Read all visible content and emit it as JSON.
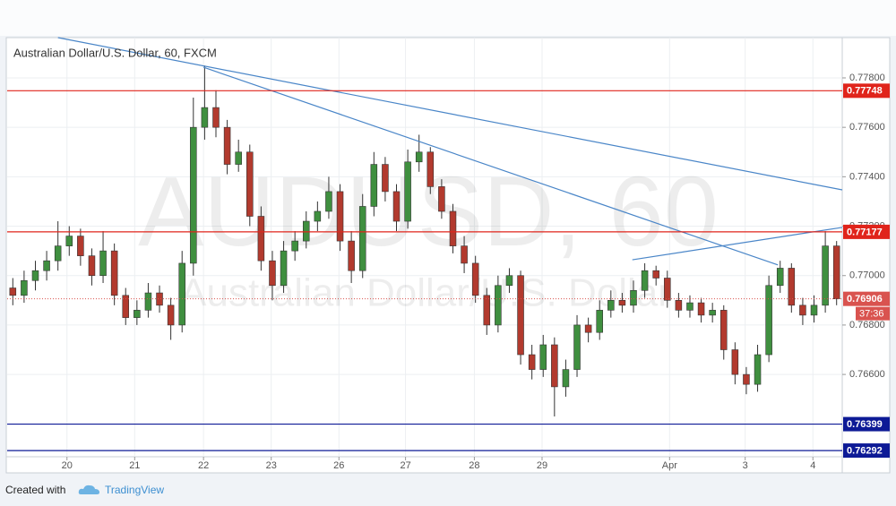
{
  "chart_data": {
    "type": "candlestick",
    "title": "Australian Dollar/U.S. Dollar, 60, FXCM",
    "watermark": "AUDUSD, 60",
    "watermark_subtitle": "Australian Dollar/U.S. Dollar",
    "xlim": [
      0,
      74
    ],
    "xticks": [
      {
        "value": 5.3,
        "label": "20"
      },
      {
        "value": 11.3,
        "label": "21"
      },
      {
        "value": 17.4,
        "label": "22"
      },
      {
        "value": 23.4,
        "label": "23"
      },
      {
        "value": 29.4,
        "label": "26"
      },
      {
        "value": 35.3,
        "label": "27"
      },
      {
        "value": 41.4,
        "label": "28"
      },
      {
        "value": 47.4,
        "label": "29"
      },
      {
        "value": 58.7,
        "label": "Apr"
      },
      {
        "value": 65.4,
        "label": "3"
      },
      {
        "value": 71.4,
        "label": "4"
      }
    ],
    "ylim": [
      0.76267,
      0.77963
    ],
    "yticks": [
      {
        "value": 0.766,
        "label": "0.76600"
      },
      {
        "value": 0.768,
        "label": "0.76800"
      },
      {
        "value": 0.77,
        "label": "0.77000"
      },
      {
        "value": 0.772,
        "label": "0.77200"
      },
      {
        "value": 0.774,
        "label": "0.77400"
      },
      {
        "value": 0.776,
        "label": "0.77600"
      },
      {
        "value": 0.778,
        "label": "0.77800"
      }
    ],
    "grid": true,
    "up_color": "#3f8f3f",
    "down_color": "#b23a2e",
    "open": [
      0.7695,
      0.7692,
      0.7698,
      0.7702,
      0.7706,
      0.7712,
      0.7716,
      0.7708,
      0.77,
      0.771,
      0.7692,
      0.7683,
      0.7686,
      0.7693,
      0.7688,
      0.768,
      0.7705,
      0.776,
      0.7768,
      0.776,
      0.7745,
      0.775,
      0.7724,
      0.7706,
      0.7696,
      0.771,
      0.7714,
      0.7722,
      0.7726,
      0.7734,
      0.7714,
      0.7702,
      0.7728,
      0.7745,
      0.7734,
      0.7722,
      0.7746,
      0.775,
      0.7736,
      0.7726,
      0.7712,
      0.7705,
      0.7692,
      0.768,
      0.7696,
      0.77,
      0.7668,
      0.7662,
      0.7672,
      0.7655,
      0.7662,
      0.768,
      0.7677,
      0.7686,
      0.769,
      0.7688,
      0.7694,
      0.7702,
      0.7699,
      0.769,
      0.7686,
      0.7689,
      0.7684,
      0.7686,
      0.767,
      0.766,
      0.7656,
      0.7668,
      0.7696,
      0.7703,
      0.7688,
      0.7684,
      0.7688,
      0.7712
    ],
    "high": [
      0.7699,
      0.7702,
      0.7706,
      0.771,
      0.7722,
      0.772,
      0.7719,
      0.7711,
      0.7718,
      0.7713,
      0.7695,
      0.769,
      0.7697,
      0.7696,
      0.7691,
      0.771,
      0.7772,
      0.7785,
      0.7775,
      0.7763,
      0.7755,
      0.7753,
      0.7728,
      0.771,
      0.7714,
      0.7718,
      0.7726,
      0.773,
      0.774,
      0.7737,
      0.7718,
      0.7733,
      0.775,
      0.7748,
      0.7737,
      0.7751,
      0.7757,
      0.7752,
      0.7739,
      0.7729,
      0.7716,
      0.7708,
      0.7695,
      0.77,
      0.7703,
      0.7702,
      0.7672,
      0.7676,
      0.7675,
      0.7666,
      0.7684,
      0.7683,
      0.769,
      0.7694,
      0.7693,
      0.7698,
      0.7705,
      0.7704,
      0.7702,
      0.7693,
      0.7692,
      0.7691,
      0.7689,
      0.7688,
      0.7673,
      0.7663,
      0.7672,
      0.77,
      0.7706,
      0.7705,
      0.7691,
      0.7692,
      0.7718,
      0.7714
    ],
    "low": [
      0.7688,
      0.7689,
      0.7694,
      0.7698,
      0.7702,
      0.7708,
      0.7704,
      0.7696,
      0.7697,
      0.7688,
      0.768,
      0.768,
      0.7683,
      0.7685,
      0.7674,
      0.7677,
      0.77,
      0.7755,
      0.7756,
      0.7741,
      0.7742,
      0.772,
      0.7702,
      0.769,
      0.7693,
      0.7706,
      0.7711,
      0.7718,
      0.7723,
      0.771,
      0.7697,
      0.7699,
      0.7724,
      0.773,
      0.7718,
      0.7719,
      0.7742,
      0.7733,
      0.7723,
      0.7709,
      0.7701,
      0.7689,
      0.7676,
      0.7677,
      0.7693,
      0.7664,
      0.7658,
      0.7659,
      0.7643,
      0.7651,
      0.7659,
      0.7673,
      0.7674,
      0.7683,
      0.7685,
      0.7685,
      0.7691,
      0.7696,
      0.7687,
      0.7683,
      0.7683,
      0.7681,
      0.7681,
      0.7666,
      0.7656,
      0.7652,
      0.7653,
      0.7665,
      0.7693,
      0.7685,
      0.768,
      0.7681,
      0.7685,
      0.7688
    ],
    "close": [
      0.7692,
      0.7698,
      0.7702,
      0.7706,
      0.7712,
      0.7716,
      0.7708,
      0.77,
      0.771,
      0.7692,
      0.7683,
      0.7686,
      0.7693,
      0.7688,
      0.768,
      0.7705,
      0.776,
      0.7768,
      0.776,
      0.7745,
      0.775,
      0.7724,
      0.7706,
      0.7696,
      0.771,
      0.7714,
      0.7722,
      0.7726,
      0.7734,
      0.7714,
      0.7702,
      0.7728,
      0.7745,
      0.7734,
      0.7722,
      0.7746,
      0.775,
      0.7736,
      0.7726,
      0.7712,
      0.7705,
      0.7692,
      0.768,
      0.7696,
      0.77,
      0.7668,
      0.7662,
      0.7672,
      0.7655,
      0.7662,
      0.768,
      0.7677,
      0.7686,
      0.769,
      0.7688,
      0.7694,
      0.7702,
      0.7699,
      0.769,
      0.7686,
      0.7689,
      0.7684,
      0.7686,
      0.767,
      0.766,
      0.7656,
      0.7668,
      0.7696,
      0.7703,
      0.7688,
      0.7684,
      0.7688,
      0.7712,
      0.76906
    ],
    "levels": [
      {
        "value": 0.77748,
        "color": "#e0241b"
      },
      {
        "value": 0.77177,
        "color": "#e0241b"
      },
      {
        "value": 0.76399,
        "color": "#0d1a96"
      },
      {
        "value": 0.76292,
        "color": "#0d1a96"
      }
    ],
    "current_price": {
      "value": 0.76906,
      "color": "#d9534f",
      "countdown": "37:36"
    },
    "trendlines": [
      {
        "x": [
          4.5,
          74
        ],
        "y": [
          0.77963,
          0.77347
        ],
        "color": "#4a86c8"
      },
      {
        "x": [
          17.4,
          68.3
        ],
        "y": [
          0.77843,
          0.77043
        ],
        "color": "#4a86c8"
      },
      {
        "x": [
          55.4,
          74
        ],
        "y": [
          0.77064,
          0.77195
        ],
        "color": "#4a86c8"
      }
    ]
  },
  "footer": {
    "created": "Created with",
    "brand": "TradingView"
  }
}
